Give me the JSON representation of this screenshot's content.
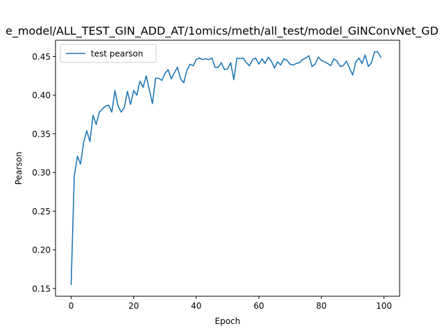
{
  "chart_data": {
    "type": "line",
    "title": "e_model/ALL_TEST_GIN_ADD_AT/1omics/meth/all_test/model_GINConvNet_GD",
    "xlabel": "Epoch",
    "ylabel": "Pearson",
    "xlim": [
      -5,
      105
    ],
    "ylim": [
      0.14,
      0.471
    ],
    "x_ticks": [
      0,
      20,
      40,
      60,
      80,
      100
    ],
    "y_ticks": [
      0.15,
      0.2,
      0.25,
      0.3,
      0.35,
      0.4,
      0.45
    ],
    "x_tick_labels": [
      "0",
      "20",
      "40",
      "60",
      "80",
      "100"
    ],
    "y_tick_labels": [
      "0.15",
      "0.20",
      "0.25",
      "0.30",
      "0.35",
      "0.40",
      "0.45"
    ],
    "grid": false,
    "legend_position": "upper-left",
    "series": [
      {
        "name": "test pearson",
        "color": "#1f77b4",
        "x": [
          0,
          1,
          2,
          3,
          4,
          5,
          6,
          7,
          8,
          9,
          10,
          11,
          12,
          13,
          14,
          15,
          16,
          17,
          18,
          19,
          20,
          21,
          22,
          23,
          24,
          25,
          26,
          27,
          28,
          29,
          30,
          31,
          32,
          33,
          34,
          35,
          36,
          37,
          38,
          39,
          40,
          41,
          42,
          43,
          44,
          45,
          46,
          47,
          48,
          49,
          50,
          51,
          52,
          53,
          54,
          55,
          56,
          57,
          58,
          59,
          60,
          61,
          62,
          63,
          64,
          65,
          66,
          67,
          68,
          69,
          70,
          71,
          72,
          73,
          74,
          75,
          76,
          77,
          78,
          79,
          80,
          81,
          82,
          83,
          84,
          85,
          86,
          87,
          88,
          89,
          90,
          91,
          92,
          93,
          94,
          95,
          96,
          97,
          98,
          99
        ],
        "values": [
          0.155,
          0.295,
          0.321,
          0.311,
          0.339,
          0.354,
          0.34,
          0.374,
          0.362,
          0.378,
          0.382,
          0.386,
          0.387,
          0.378,
          0.406,
          0.386,
          0.378,
          0.384,
          0.405,
          0.388,
          0.406,
          0.4,
          0.418,
          0.41,
          0.425,
          0.407,
          0.389,
          0.422,
          0.422,
          0.419,
          0.428,
          0.433,
          0.421,
          0.429,
          0.436,
          0.421,
          0.416,
          0.432,
          0.44,
          0.438,
          0.446,
          0.448,
          0.446,
          0.447,
          0.446,
          0.448,
          0.436,
          0.436,
          0.442,
          0.433,
          0.434,
          0.442,
          0.42,
          0.448,
          0.447,
          0.448,
          0.442,
          0.438,
          0.446,
          0.448,
          0.44,
          0.447,
          0.441,
          0.449,
          0.444,
          0.435,
          0.443,
          0.439,
          0.447,
          0.445,
          0.44,
          0.439,
          0.441,
          0.442,
          0.446,
          0.448,
          0.451,
          0.437,
          0.44,
          0.449,
          0.445,
          0.443,
          0.441,
          0.438,
          0.447,
          0.444,
          0.437,
          0.438,
          0.444,
          0.435,
          0.426,
          0.443,
          0.448,
          0.441,
          0.452,
          0.437,
          0.442,
          0.456,
          0.456,
          0.449
        ]
      }
    ]
  }
}
